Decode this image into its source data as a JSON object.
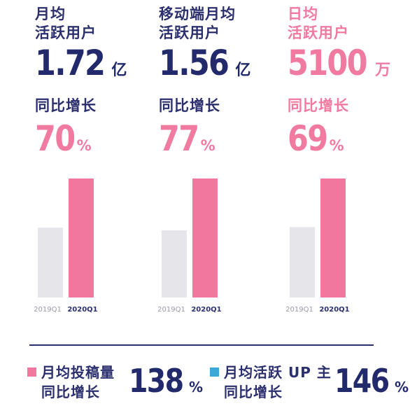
{
  "colors": {
    "navy": "#232a6b",
    "pink": "#f07aa0",
    "bar_2019": "#e6e5e9",
    "bar_2020": "#f1779f",
    "blue_square": "#3ba8d8"
  },
  "columns": [
    {
      "label_line1": "月均",
      "label_line2": "活跃用户",
      "value": "1.72",
      "unit": "亿",
      "growth_label": "同比增长",
      "growth_value": "70",
      "growth_unit": "%",
      "highlight": false
    },
    {
      "label_line1": "移动端月均",
      "label_line2": "活跃用户",
      "value": "1.56",
      "unit": "亿",
      "growth_label": "同比增长",
      "growth_value": "77",
      "growth_unit": "%",
      "highlight": false
    },
    {
      "label_line1": "日均",
      "label_line2": "活跃用户",
      "value": "5100",
      "unit": "万",
      "growth_label": "同比增长",
      "growth_value": "69",
      "growth_unit": "%",
      "highlight": true
    }
  ],
  "chart_data": [
    {
      "type": "bar",
      "categories": [
        "2019Q1",
        "2020Q1"
      ],
      "values": [
        1.01,
        1.72
      ],
      "ylim": [
        0,
        1.72
      ]
    },
    {
      "type": "bar",
      "categories": [
        "2019Q1",
        "2020Q1"
      ],
      "values": [
        0.88,
        1.56
      ],
      "ylim": [
        0,
        1.56
      ]
    },
    {
      "type": "bar",
      "categories": [
        "2019Q1",
        "2020Q1"
      ],
      "values": [
        3018,
        5100
      ],
      "ylim": [
        0,
        5100
      ]
    }
  ],
  "bottom_stats": [
    {
      "square_color": "#f1779f",
      "line1": "月均投稿量",
      "line2": "同比增长",
      "value": "138",
      "unit": "%"
    },
    {
      "square_color": "#3ba8d8",
      "line1": "月均活跃 UP 主",
      "line2": "同比增长",
      "value": "146",
      "unit": "%"
    }
  ]
}
